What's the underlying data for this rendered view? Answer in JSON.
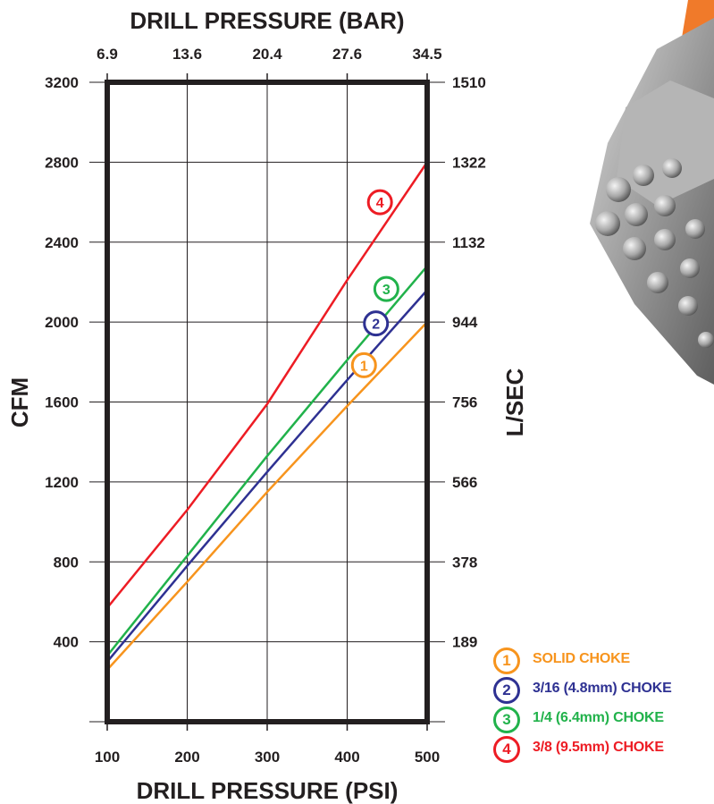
{
  "chart_data": {
    "type": "line",
    "title": "DRILL PRESSURE (BAR)",
    "xlabel": "DRILL PRESSURE (PSI)",
    "ylabel": "CFM",
    "y2label": "L/SEC",
    "xlim": [
      100,
      500
    ],
    "ylim": [
      0,
      3200
    ],
    "x_ticks": [
      100,
      200,
      300,
      400,
      500
    ],
    "x_tick_labels": [
      "100",
      "200",
      "300",
      "400",
      "500"
    ],
    "x2_tick_labels": [
      "6.9",
      "13.6",
      "20.4",
      "27.6",
      "34.5"
    ],
    "y_ticks": [
      400,
      800,
      1200,
      1600,
      2000,
      2400,
      2800,
      3200
    ],
    "y_tick_labels": [
      "400",
      "800",
      "1200",
      "1600",
      "2000",
      "2400",
      "2800",
      "3200"
    ],
    "y2_tick_labels": [
      "189",
      "378",
      "566",
      "756",
      "944",
      "1132",
      "1322",
      "1510"
    ],
    "grid": true,
    "legend_position": "bottom-right",
    "series": [
      {
        "name": "SOLID CHOKE",
        "marker": "1",
        "color": "#f7941d",
        "x": [
          100,
          200,
          300,
          400,
          500
        ],
        "y": [
          260,
          700,
          1150,
          1580,
          2000
        ]
      },
      {
        "name": "3/16 (4.8mm) CHOKE",
        "marker": "2",
        "color": "#2e3192",
        "x": [
          100,
          200,
          300,
          400,
          500
        ],
        "y": [
          300,
          780,
          1250,
          1710,
          2160
        ]
      },
      {
        "name": "1/4 (6.4mm) CHOKE",
        "marker": "3",
        "color": "#21b24b",
        "x": [
          100,
          200,
          300,
          400,
          500
        ],
        "y": [
          330,
          830,
          1330,
          1810,
          2280
        ]
      },
      {
        "name": "3/8 (9.5mm) CHOKE",
        "marker": "4",
        "color": "#ed1c24",
        "x": [
          100,
          200,
          300,
          400,
          500
        ],
        "y": [
          570,
          1060,
          1590,
          2210,
          2800
        ]
      }
    ]
  }
}
